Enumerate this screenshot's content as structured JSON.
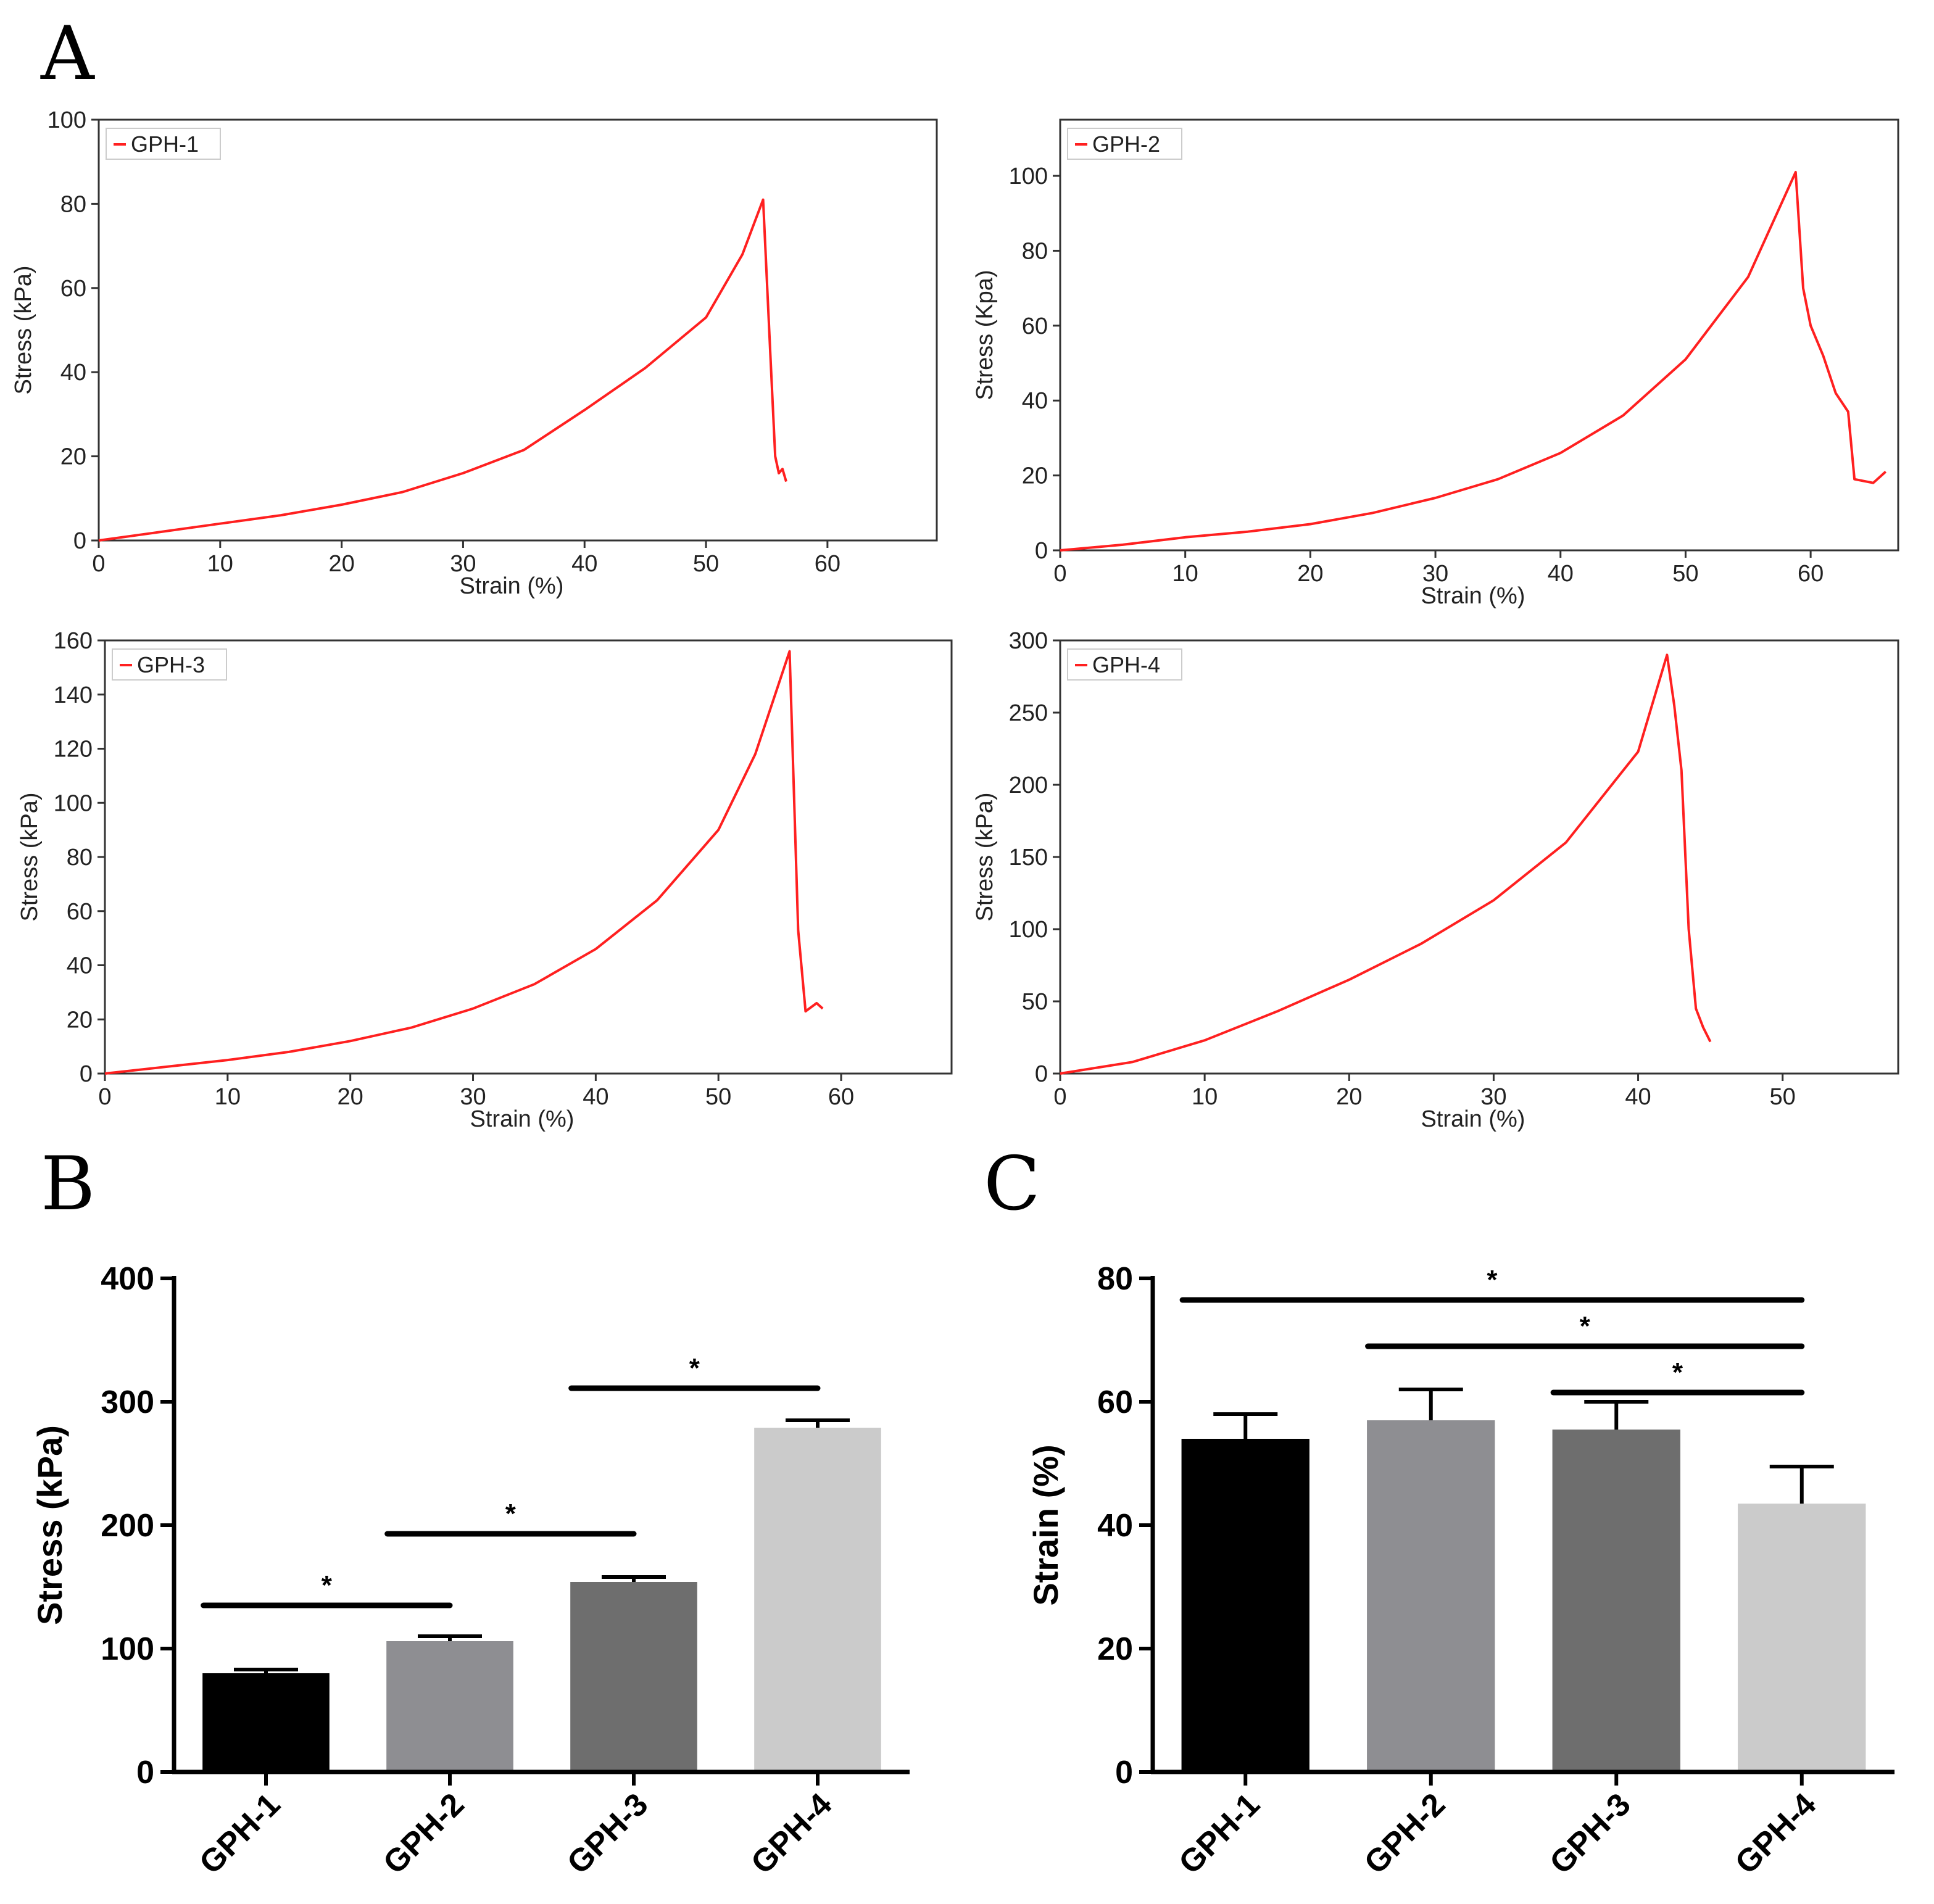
{
  "panels": {
    "a": "A",
    "b": "B",
    "c": "C"
  },
  "chart_data": [
    {
      "panel": "A",
      "type": "line",
      "legend": "GPH-1",
      "xlabel": "Strain (%)",
      "ylabel": "Stress (kPa)",
      "xlim": [
        0,
        69
      ],
      "ylim": [
        0,
        100
      ],
      "xticks": [
        0,
        10,
        20,
        30,
        40,
        50,
        60
      ],
      "yticks": [
        0,
        20,
        40,
        60,
        80,
        100
      ],
      "color": "#ff2020",
      "x": [
        0,
        5,
        10,
        15,
        20,
        25,
        30,
        35,
        40,
        45,
        50,
        53,
        54.7,
        55.3,
        55.7,
        56.0,
        56.3,
        56.6
      ],
      "y": [
        0,
        2,
        4,
        6,
        8.5,
        11.5,
        16,
        21.5,
        31,
        41,
        53,
        68,
        81,
        44,
        20,
        16,
        17,
        14
      ]
    },
    {
      "panel": "A",
      "type": "line",
      "legend": "GPH-2",
      "xlabel": "Strain (%)",
      "ylabel": "Stress (Kpa)",
      "xlim": [
        0,
        67
      ],
      "ylim": [
        0,
        115
      ],
      "xticks": [
        0,
        10,
        20,
        30,
        40,
        50,
        60
      ],
      "yticks": [
        0,
        20,
        40,
        60,
        80,
        100
      ],
      "color": "#ff2020",
      "x": [
        0,
        5,
        10,
        15,
        20,
        25,
        30,
        35,
        40,
        45,
        50,
        55,
        58.8,
        59.4,
        60,
        61,
        62,
        63,
        63.5,
        65,
        66
      ],
      "y": [
        0,
        1.5,
        3.5,
        5,
        7,
        10,
        14,
        19,
        26,
        36,
        51,
        73,
        101,
        70,
        60,
        52,
        42,
        37,
        19,
        18,
        21
      ]
    },
    {
      "panel": "A",
      "type": "line",
      "legend": "GPH-3",
      "xlabel": "Strain (%)",
      "ylabel": "Stress (kPa)",
      "xlim": [
        0,
        69
      ],
      "ylim": [
        0,
        160
      ],
      "xticks": [
        0,
        10,
        20,
        30,
        40,
        50,
        60
      ],
      "yticks": [
        0,
        20,
        40,
        60,
        80,
        100,
        120,
        140,
        160
      ],
      "color": "#ff2020",
      "x": [
        0,
        5,
        10,
        15,
        20,
        25,
        30,
        35,
        40,
        45,
        50,
        53,
        55.8,
        56.5,
        57.1,
        58,
        58.5
      ],
      "y": [
        0,
        2.5,
        5,
        8,
        12,
        17,
        24,
        33,
        46,
        64,
        90,
        118,
        156,
        53,
        23,
        26,
        24
      ]
    },
    {
      "panel": "A",
      "type": "line",
      "legend": "GPH-4",
      "xlabel": "Strain (%)",
      "ylabel": "Stress (kPa)",
      "xlim": [
        0,
        58
      ],
      "ylim": [
        0,
        300
      ],
      "xticks": [
        0,
        10,
        20,
        30,
        40,
        50
      ],
      "yticks": [
        0,
        50,
        100,
        150,
        200,
        250,
        300
      ],
      "color": "#ff2020",
      "x": [
        0,
        5,
        10,
        15,
        20,
        25,
        30,
        35,
        40,
        42,
        42.5,
        43,
        43.5,
        44,
        44.5,
        45
      ],
      "y": [
        0,
        8,
        23,
        43,
        65,
        90,
        120,
        160,
        223,
        290,
        255,
        210,
        100,
        45,
        32,
        22
      ]
    },
    {
      "panel": "B",
      "type": "bar",
      "categories": [
        "GPH-1",
        "GPH-2",
        "GPH-3",
        "GPH-4"
      ],
      "values": [
        80,
        106,
        154,
        279
      ],
      "errors": [
        3,
        4,
        4,
        6
      ],
      "colors": [
        "#000000",
        "#8e8e92",
        "#6e6e6e",
        "#cbcbcb"
      ],
      "ylabel": "Stress (kPa)",
      "ylim": [
        0,
        400
      ],
      "yticks": [
        0,
        100,
        200,
        300,
        400
      ],
      "significance": [
        {
          "from": 0,
          "to": 1,
          "level": 135,
          "label": "*"
        },
        {
          "from": 1,
          "to": 2,
          "level": 193,
          "label": "*"
        },
        {
          "from": 2,
          "to": 3,
          "level": 311,
          "label": "*"
        }
      ]
    },
    {
      "panel": "C",
      "type": "bar",
      "categories": [
        "GPH-1",
        "GPH-2",
        "GPH-3",
        "GPH-4"
      ],
      "values": [
        54,
        57,
        55.5,
        43.5
      ],
      "errors": [
        4,
        5,
        4.5,
        6
      ],
      "colors": [
        "#000000",
        "#8e8e92",
        "#6e6e6e",
        "#cbcbcb"
      ],
      "ylabel": "Strain (%)",
      "ylim": [
        0,
        80
      ],
      "yticks": [
        0,
        20,
        40,
        60,
        80
      ],
      "significance": [
        {
          "from": 0,
          "to": 3,
          "level": 76.5,
          "label": "*"
        },
        {
          "from": 1,
          "to": 3,
          "level": 69,
          "label": "*"
        },
        {
          "from": 2,
          "to": 3,
          "level": 61.5,
          "label": "*"
        }
      ]
    }
  ]
}
